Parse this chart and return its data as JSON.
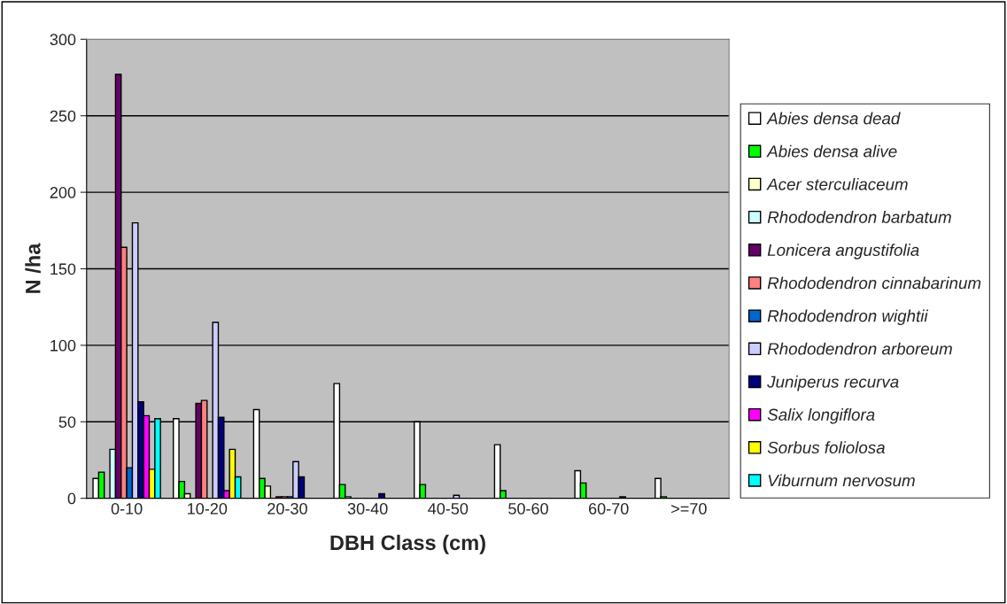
{
  "chart_data": {
    "type": "bar",
    "xlabel": "DBH Class (cm)",
    "ylabel": "N /ha",
    "categories": [
      "0-10",
      "10-20",
      "20-30",
      "30-40",
      "40-50",
      "50-60",
      "60-70",
      ">=70"
    ],
    "series": [
      {
        "name": "Abies densa dead",
        "color": "#ffffff",
        "values": [
          13,
          52,
          58,
          75,
          50,
          35,
          18,
          13
        ]
      },
      {
        "name": "Abies densa alive",
        "color": "#00ff00",
        "values": [
          17,
          11,
          13,
          9,
          9,
          5,
          10,
          1
        ]
      },
      {
        "name": "Acer sterculiaceum",
        "color": "#ffffcc",
        "values": [
          null,
          3,
          8,
          1,
          null,
          null,
          null,
          null
        ]
      },
      {
        "name": "Rhododendron barbatum",
        "color": "#ccffff",
        "values": [
          32,
          null,
          null,
          null,
          null,
          null,
          null,
          null
        ]
      },
      {
        "name": "Lonicera angustifolia",
        "color": "#660066",
        "values": [
          277,
          62,
          1,
          null,
          null,
          null,
          null,
          null
        ]
      },
      {
        "name": "Rhododendron cinnabarinum",
        "color": "#ff8080",
        "values": [
          164,
          64,
          1,
          null,
          null,
          null,
          null,
          null
        ]
      },
      {
        "name": "Rhododendron wightii",
        "color": "#0066cc",
        "values": [
          20,
          null,
          1,
          null,
          null,
          null,
          null,
          null
        ]
      },
      {
        "name": "Rhododendron arboreum",
        "color": "#ccccff",
        "values": [
          180,
          115,
          24,
          null,
          2,
          null,
          null,
          null
        ]
      },
      {
        "name": "Juniperus recurva",
        "color": "#000080",
        "values": [
          63,
          53,
          14,
          3,
          null,
          null,
          1,
          null
        ]
      },
      {
        "name": "Salix longiflora",
        "color": "#ff00ff",
        "values": [
          54,
          5,
          null,
          null,
          null,
          null,
          null,
          null
        ]
      },
      {
        "name": "Sorbus foliolosa",
        "color": "#ffff00",
        "values": [
          19,
          32,
          null,
          null,
          null,
          null,
          null,
          null
        ]
      },
      {
        "name": "Viburnum nervosum",
        "color": "#00ffff",
        "values": [
          52,
          14,
          null,
          null,
          null,
          null,
          null,
          null
        ]
      }
    ],
    "ylim": [
      0,
      300
    ],
    "yticks": [
      0,
      50,
      100,
      150,
      200,
      250,
      300
    ],
    "grid": "y",
    "legend": "right"
  }
}
